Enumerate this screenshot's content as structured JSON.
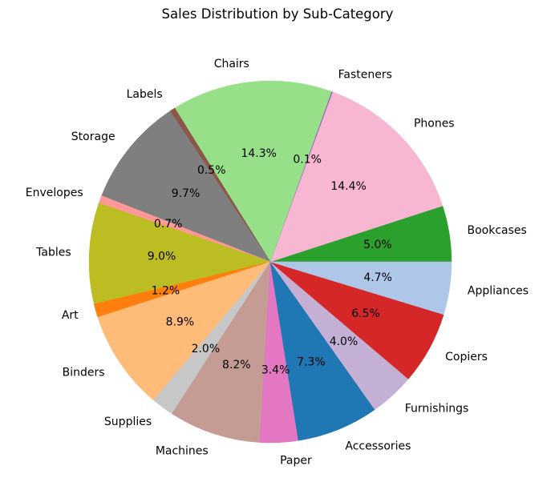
{
  "chart_data": {
    "type": "pie",
    "title": "Sales Distribution by Sub-Category",
    "start_angle_deg": 0,
    "direction": "counterclockwise",
    "slices": [
      {
        "label": "Bookcases",
        "percent": 5.0,
        "pct_label": "5.0%",
        "color": "#2ca02c"
      },
      {
        "label": "Phones",
        "percent": 14.4,
        "pct_label": "14.4%",
        "color": "#f7b6d2"
      },
      {
        "label": "Fasteners",
        "percent": 0.1,
        "pct_label": "0.1%",
        "color": "#9467bd"
      },
      {
        "label": "Chairs",
        "percent": 14.3,
        "pct_label": "14.3%",
        "color": "#98df8a"
      },
      {
        "label": "Labels",
        "percent": 0.5,
        "pct_label": "0.5%",
        "color": "#8c564b"
      },
      {
        "label": "Storage",
        "percent": 9.7,
        "pct_label": "9.7%",
        "color": "#7f7f7f"
      },
      {
        "label": "Envelopes",
        "percent": 0.7,
        "pct_label": "0.7%",
        "color": "#ff9896"
      },
      {
        "label": "Tables",
        "percent": 9.0,
        "pct_label": "9.0%",
        "color": "#bcbd22"
      },
      {
        "label": "Art",
        "percent": 1.2,
        "pct_label": "1.2%",
        "color": "#ff7f0e"
      },
      {
        "label": "Binders",
        "percent": 8.9,
        "pct_label": "8.9%",
        "color": "#ffbb78"
      },
      {
        "label": "Supplies",
        "percent": 2.0,
        "pct_label": "2.0%",
        "color": "#c7c7c7"
      },
      {
        "label": "Machines",
        "percent": 8.2,
        "pct_label": "8.2%",
        "color": "#c49c94"
      },
      {
        "label": "Paper",
        "percent": 3.4,
        "pct_label": "3.4%",
        "color": "#e377c2"
      },
      {
        "label": "Accessories",
        "percent": 7.3,
        "pct_label": "7.3%",
        "color": "#1f77b4"
      },
      {
        "label": "Furnishings",
        "percent": 4.0,
        "pct_label": "4.0%",
        "color": "#c5b0d5"
      },
      {
        "label": "Copiers",
        "percent": 6.5,
        "pct_label": "6.5%",
        "color": "#d62728"
      },
      {
        "label": "Appliances",
        "percent": 4.7,
        "pct_label": "4.7%",
        "color": "#aec7e8"
      }
    ]
  }
}
